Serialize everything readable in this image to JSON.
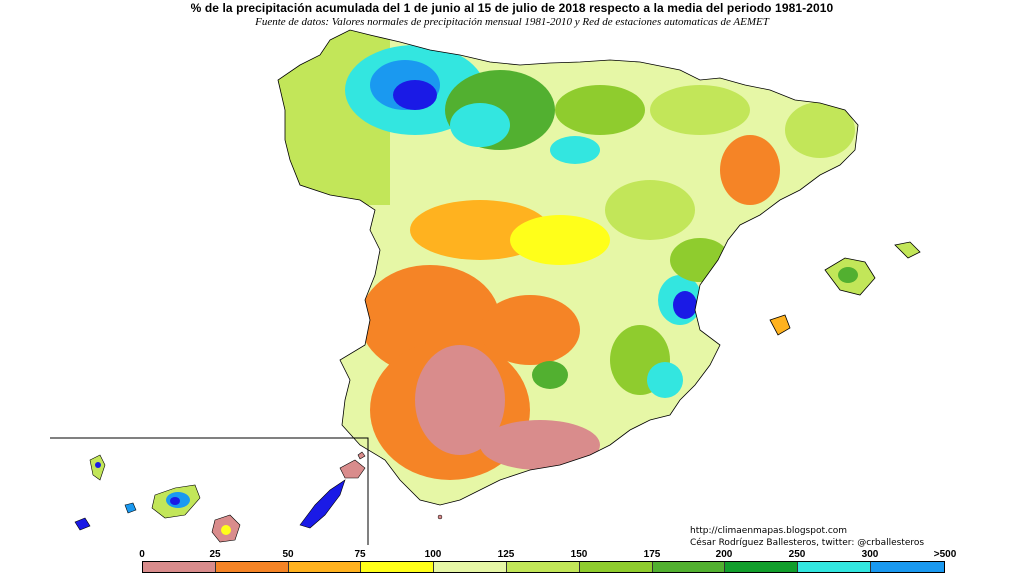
{
  "header": {
    "title": "% de la precipitación acumulada del 1 de junio al 15 de julio de 2018 respecto a la media del periodo 1981-2010",
    "subtitle": "Fuente de datos: Valores normales de precipitación mensual 1981-2010 y Red de estaciones automaticas de AEMET"
  },
  "credits": {
    "website": "http://climaenmapas.blogspot.com",
    "author": "César Rodríguez Ballesteros, twitter: @crballesteros"
  },
  "legend": {
    "labels": [
      "0",
      "25",
      "50",
      "75",
      "100",
      "125",
      "150",
      "175",
      "200",
      "250",
      "300",
      ">500"
    ],
    "colors": [
      "#d98c8c",
      "#f58426",
      "#ffb21f",
      "#ffff1a",
      "#e6f7a6",
      "#c2e659",
      "#8fcc2e",
      "#52b030",
      "#129e2c",
      "#33e6e0",
      "#1a99f0",
      "#1a1ae6"
    ]
  },
  "map": {
    "inset": "Islas Canarias",
    "regions": [
      {
        "name": "Galicia",
        "category": "125-150"
      },
      {
        "name": "Asturias / León",
        "category": ">500"
      },
      {
        "name": "Castilla y León norte",
        "category": "250-300"
      },
      {
        "name": "Cantabria / País Vasco",
        "category": "175-200"
      },
      {
        "name": "Cataluña",
        "category": "25-50"
      },
      {
        "name": "Centro",
        "category": "75-100"
      },
      {
        "name": "Extremadura",
        "category": "25-50"
      },
      {
        "name": "Andalucía occidental",
        "category": "0-25"
      },
      {
        "name": "Levante",
        "category": "250-300"
      },
      {
        "name": "Baleares",
        "category": "125-150"
      },
      {
        "name": "Canarias",
        "category": "variable"
      }
    ]
  }
}
